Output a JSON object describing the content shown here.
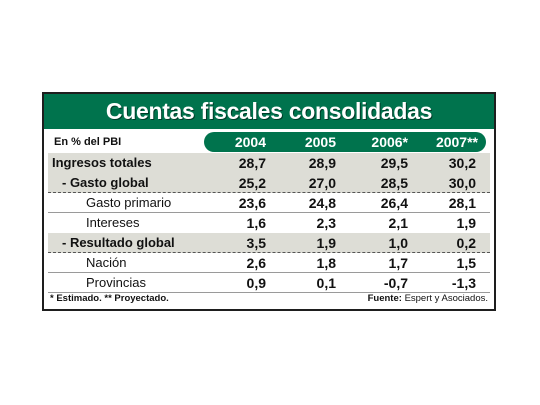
{
  "title": "Cuentas fiscales consolidadas",
  "unit_label": "En % del PBI",
  "years": [
    "2004",
    "2005",
    "2006*",
    "2007**"
  ],
  "rows": [
    {
      "label": "Ingresos totales",
      "values": [
        "28,7",
        "28,9",
        "29,5",
        "30,2"
      ]
    },
    {
      "label": "- Gasto global",
      "values": [
        "25,2",
        "27,0",
        "28,5",
        "30,0"
      ]
    },
    {
      "label": "Gasto primario",
      "values": [
        "23,6",
        "24,8",
        "26,4",
        "28,1"
      ]
    },
    {
      "label": "Intereses",
      "values": [
        "1,6",
        "2,3",
        "2,1",
        "1,9"
      ]
    },
    {
      "label": "- Resultado global",
      "values": [
        "3,5",
        "1,9",
        "1,0",
        "0,2"
      ]
    },
    {
      "label": "Nación",
      "values": [
        "2,6",
        "1,8",
        "1,7",
        "1,5"
      ]
    },
    {
      "label": "Provincias",
      "values": [
        "0,9",
        "0,1",
        "-0,7",
        "-1,3"
      ]
    }
  ],
  "footer": {
    "note": "* Estimado. ** Proyectado.",
    "source_label": "Fuente:",
    "source_text": "Espert y Asociados."
  },
  "colors": {
    "accent": "#00734d",
    "shade": "#ddddd6"
  }
}
